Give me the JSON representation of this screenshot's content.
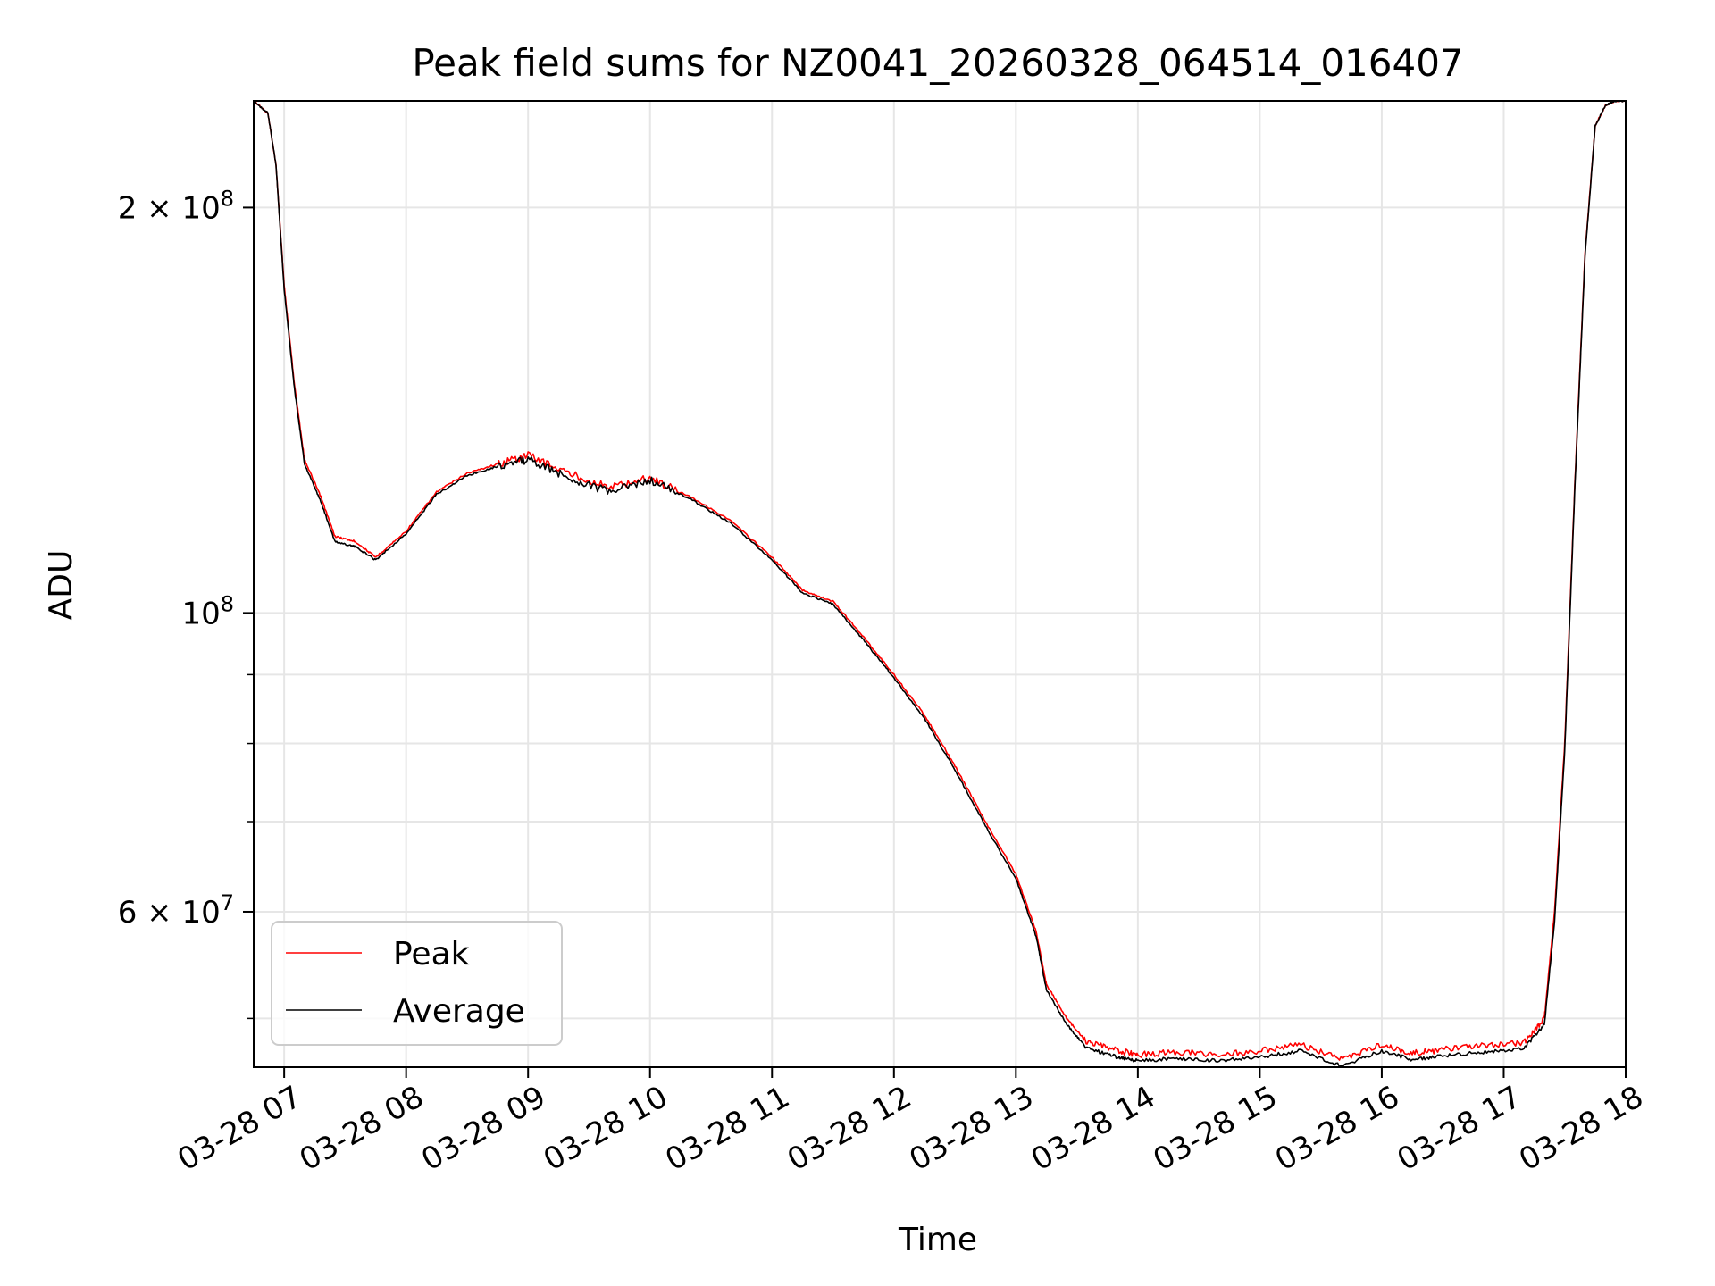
{
  "chart_data": {
    "type": "line",
    "title": "Peak field sums for NZ0041_20260328_064514_016407",
    "xlabel": "Time",
    "ylabel": "ADU",
    "yscale": "log",
    "xlim": [
      "2026-03-28 06:45",
      "2026-03-28 18:00"
    ],
    "ylim": [
      46000000,
      240000000
    ],
    "grid": true,
    "legend_position": "lower-left",
    "x_ticks": [
      "2026-03-28 07:00",
      "2026-03-28 08:00",
      "2026-03-28 09:00",
      "2026-03-28 10:00",
      "2026-03-28 11:00",
      "2026-03-28 12:00",
      "2026-03-28 13:00",
      "2026-03-28 14:00",
      "2026-03-28 15:00",
      "2026-03-28 16:00",
      "2026-03-28 17:00",
      "2026-03-28 18:00"
    ],
    "x_tick_labels": [
      "03-28 07",
      "03-28 08",
      "03-28 09",
      "03-28 10",
      "03-28 11",
      "03-28 12",
      "03-28 13",
      "03-28 14",
      "03-28 15",
      "03-28 16",
      "03-28 17",
      "03-28 18"
    ],
    "y_major_ticks": [
      {
        "value": 100000000,
        "label_base": "10",
        "label_exp": "8",
        "label_mant": ""
      },
      {
        "value": 200000000,
        "label_base": "10",
        "label_exp": "8",
        "label_mant": "2 × "
      },
      {
        "value": 60000000,
        "label_base": "10",
        "label_exp": "7",
        "label_mant": "6 × "
      }
    ],
    "y_minor_ticks": [
      50000000,
      70000000,
      80000000,
      90000000
    ],
    "series": [
      {
        "name": "Peak",
        "color": "#ff0000",
        "x": [
          "2026-03-28 06:45",
          "2026-03-28 06:52",
          "2026-03-28 06:56",
          "2026-03-28 07:00",
          "2026-03-28 07:05",
          "2026-03-28 07:10",
          "2026-03-28 07:18",
          "2026-03-28 07:25",
          "2026-03-28 07:35",
          "2026-03-28 07:45",
          "2026-03-28 08:00",
          "2026-03-28 08:15",
          "2026-03-28 08:30",
          "2026-03-28 08:45",
          "2026-03-28 09:00",
          "2026-03-28 09:20",
          "2026-03-28 09:40",
          "2026-03-28 10:00",
          "2026-03-28 10:20",
          "2026-03-28 10:40",
          "2026-03-28 11:00",
          "2026-03-28 11:15",
          "2026-03-28 11:30",
          "2026-03-28 11:45",
          "2026-03-28 12:00",
          "2026-03-28 12:15",
          "2026-03-28 12:30",
          "2026-03-28 12:45",
          "2026-03-28 13:00",
          "2026-03-28 13:10",
          "2026-03-28 13:15",
          "2026-03-28 13:25",
          "2026-03-28 13:35",
          "2026-03-28 13:50",
          "2026-03-28 14:00",
          "2026-03-28 14:20",
          "2026-03-28 14:40",
          "2026-03-28 15:00",
          "2026-03-28 15:20",
          "2026-03-28 15:40",
          "2026-03-28 16:00",
          "2026-03-28 16:15",
          "2026-03-28 16:30",
          "2026-03-28 16:50",
          "2026-03-28 17:10",
          "2026-03-28 17:20",
          "2026-03-28 17:25",
          "2026-03-28 17:30",
          "2026-03-28 17:35",
          "2026-03-28 17:40",
          "2026-03-28 17:45",
          "2026-03-28 17:50",
          "2026-03-28 17:55",
          "2026-03-28 18:00"
        ],
        "values": [
          240000000,
          235000000,
          215000000,
          175000000,
          148000000,
          130000000,
          122000000,
          114000000,
          113000000,
          110000000,
          115000000,
          123000000,
          127000000,
          129000000,
          131000000,
          127000000,
          124000000,
          126000000,
          122000000,
          117000000,
          110000000,
          104000000,
          102000000,
          96000000,
          90000000,
          84000000,
          77000000,
          70000000,
          64000000,
          58000000,
          53000000,
          50000000,
          48000000,
          47300000,
          47000000,
          47200000,
          47000000,
          47300000,
          47800000,
          46600000,
          47800000,
          47100000,
          47400000,
          47700000,
          48000000,
          50000000,
          60000000,
          80000000,
          125000000,
          185000000,
          230000000,
          238000000,
          240000000,
          240000000
        ]
      },
      {
        "name": "Average",
        "color": "#000000",
        "x": [
          "2026-03-28 06:45",
          "2026-03-28 06:52",
          "2026-03-28 06:56",
          "2026-03-28 07:00",
          "2026-03-28 07:05",
          "2026-03-28 07:10",
          "2026-03-28 07:18",
          "2026-03-28 07:25",
          "2026-03-28 07:35",
          "2026-03-28 07:45",
          "2026-03-28 08:00",
          "2026-03-28 08:15",
          "2026-03-28 08:30",
          "2026-03-28 08:45",
          "2026-03-28 09:00",
          "2026-03-28 09:20",
          "2026-03-28 09:40",
          "2026-03-28 10:00",
          "2026-03-28 10:20",
          "2026-03-28 10:40",
          "2026-03-28 11:00",
          "2026-03-28 11:15",
          "2026-03-28 11:30",
          "2026-03-28 11:45",
          "2026-03-28 12:00",
          "2026-03-28 12:15",
          "2026-03-28 12:30",
          "2026-03-28 12:45",
          "2026-03-28 13:00",
          "2026-03-28 13:10",
          "2026-03-28 13:15",
          "2026-03-28 13:25",
          "2026-03-28 13:35",
          "2026-03-28 13:50",
          "2026-03-28 14:00",
          "2026-03-28 14:20",
          "2026-03-28 14:40",
          "2026-03-28 15:00",
          "2026-03-28 15:20",
          "2026-03-28 15:40",
          "2026-03-28 16:00",
          "2026-03-28 16:15",
          "2026-03-28 16:30",
          "2026-03-28 16:50",
          "2026-03-28 17:10",
          "2026-03-28 17:20",
          "2026-03-28 17:25",
          "2026-03-28 17:30",
          "2026-03-28 17:35",
          "2026-03-28 17:40",
          "2026-03-28 17:45",
          "2026-03-28 17:50",
          "2026-03-28 17:55",
          "2026-03-28 18:00"
        ],
        "values": [
          240000000,
          235000000,
          215000000,
          174000000,
          147000000,
          129000000,
          121000000,
          113000000,
          112000000,
          109500000,
          114500000,
          122500000,
          126500000,
          128500000,
          130000000,
          126000000,
          123000000,
          125500000,
          121500000,
          116500000,
          109500000,
          103500000,
          101500000,
          95500000,
          89500000,
          83500000,
          76500000,
          69500000,
          63500000,
          57500000,
          52500000,
          49500000,
          47500000,
          46800000,
          46500000,
          46700000,
          46500000,
          46800000,
          47300000,
          46100000,
          47300000,
          46600000,
          46900000,
          47200000,
          47500000,
          49500000,
          59000000,
          79000000,
          124000000,
          184000000,
          230000000,
          238000000,
          240000000,
          240000000
        ]
      }
    ]
  }
}
